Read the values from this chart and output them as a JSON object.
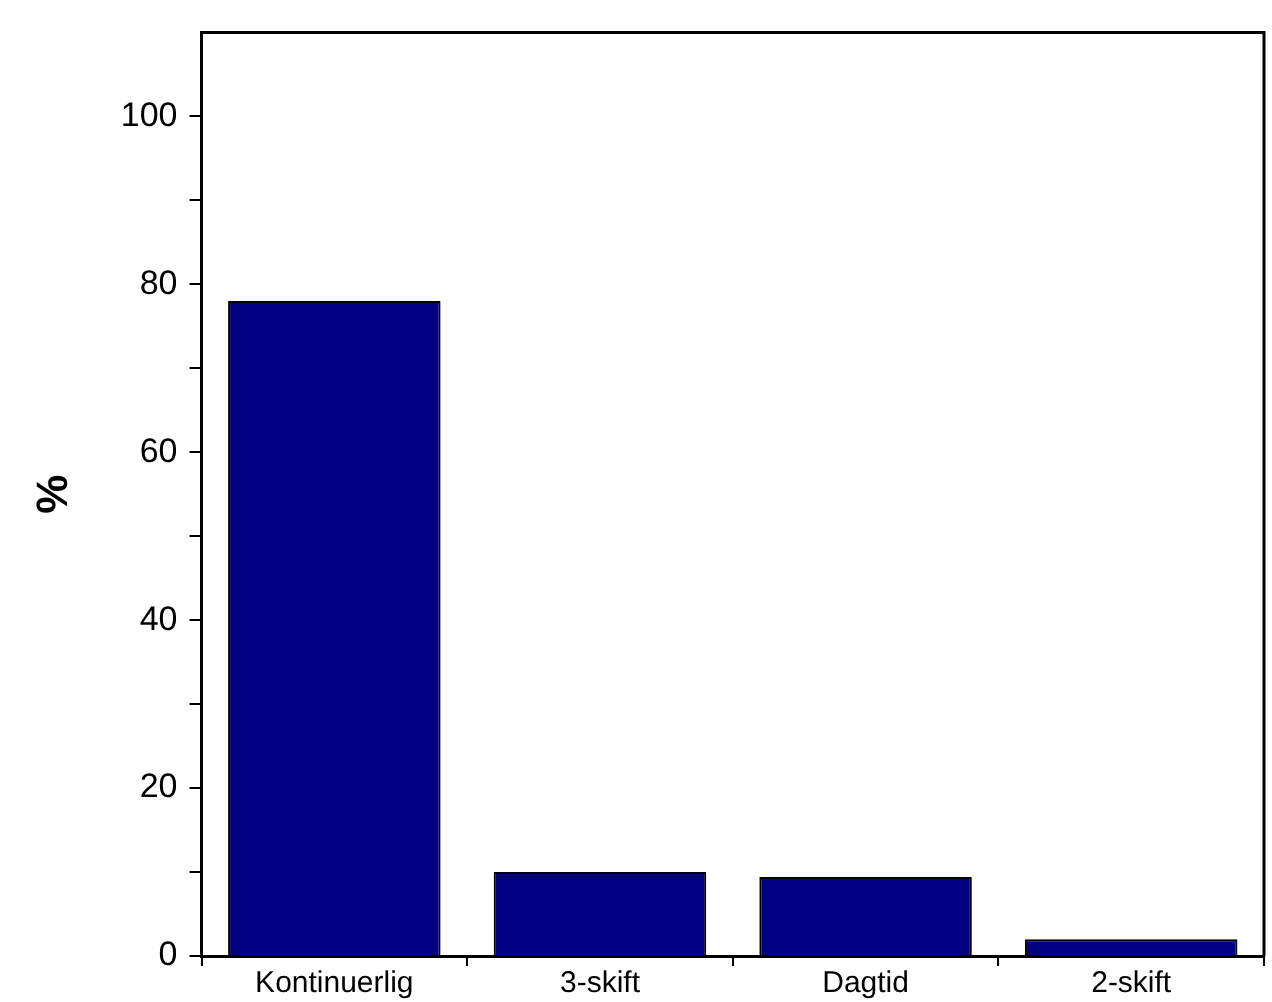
{
  "chart_data": {
    "type": "bar",
    "ylabel": "%",
    "categories": [
      "Kontinuerlig",
      "3-skift",
      "Dagtid",
      "2-skift"
    ],
    "values": [
      78,
      10,
      9.4,
      2
    ],
    "color": "#000080",
    "ylim": [
      0,
      110
    ],
    "yticks": [
      0,
      {
        "value": 10,
        "label": null
      },
      20,
      {
        "value": 30,
        "label": null
      },
      40,
      {
        "value": 50,
        "label": null
      },
      60,
      {
        "value": 70,
        "label": null
      },
      80,
      {
        "value": 90,
        "label": null
      },
      100
    ],
    "grid": false,
    "legend": false
  }
}
